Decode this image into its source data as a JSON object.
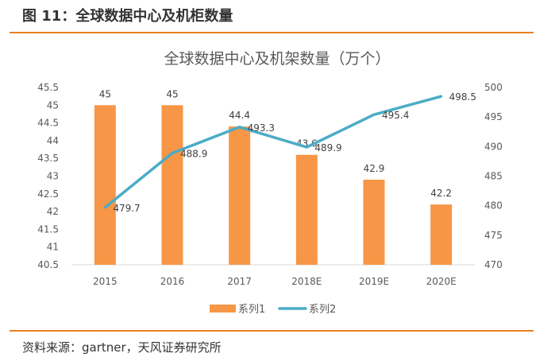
{
  "header": {
    "title": "图 11：全球数据中心及机柜数量"
  },
  "footer": {
    "source": "资料来源：gartner，天风证券研究所"
  },
  "colors": {
    "rule": "#e8801e",
    "bar": "#f79646",
    "line": "#4bacc6"
  },
  "chart_data": {
    "type": "bar+line",
    "title": "全球数据中心及机架数量（万个）",
    "categories": [
      "2015",
      "2016",
      "2017",
      "2018E",
      "2019E",
      "2020E"
    ],
    "series": [
      {
        "name": "系列1",
        "type": "bar",
        "axis": "left",
        "values": [
          45,
          45,
          44.4,
          43.6,
          42.9,
          42.2
        ]
      },
      {
        "name": "系列2",
        "type": "line",
        "axis": "right",
        "values": [
          479.7,
          488.9,
          493.3,
          489.9,
          495.4,
          498.5
        ]
      }
    ],
    "y_left": {
      "range": [
        40.5,
        45.5
      ],
      "ticks": [
        "40.5",
        "41",
        "41.5",
        "42",
        "42.5",
        "43",
        "43.5",
        "44",
        "44.5",
        "45",
        "45.5"
      ]
    },
    "y_right": {
      "range": [
        470,
        500
      ],
      "ticks": [
        "470",
        "475",
        "480",
        "485",
        "490",
        "495",
        "500"
      ]
    },
    "grid": false,
    "legend": "bottom"
  }
}
